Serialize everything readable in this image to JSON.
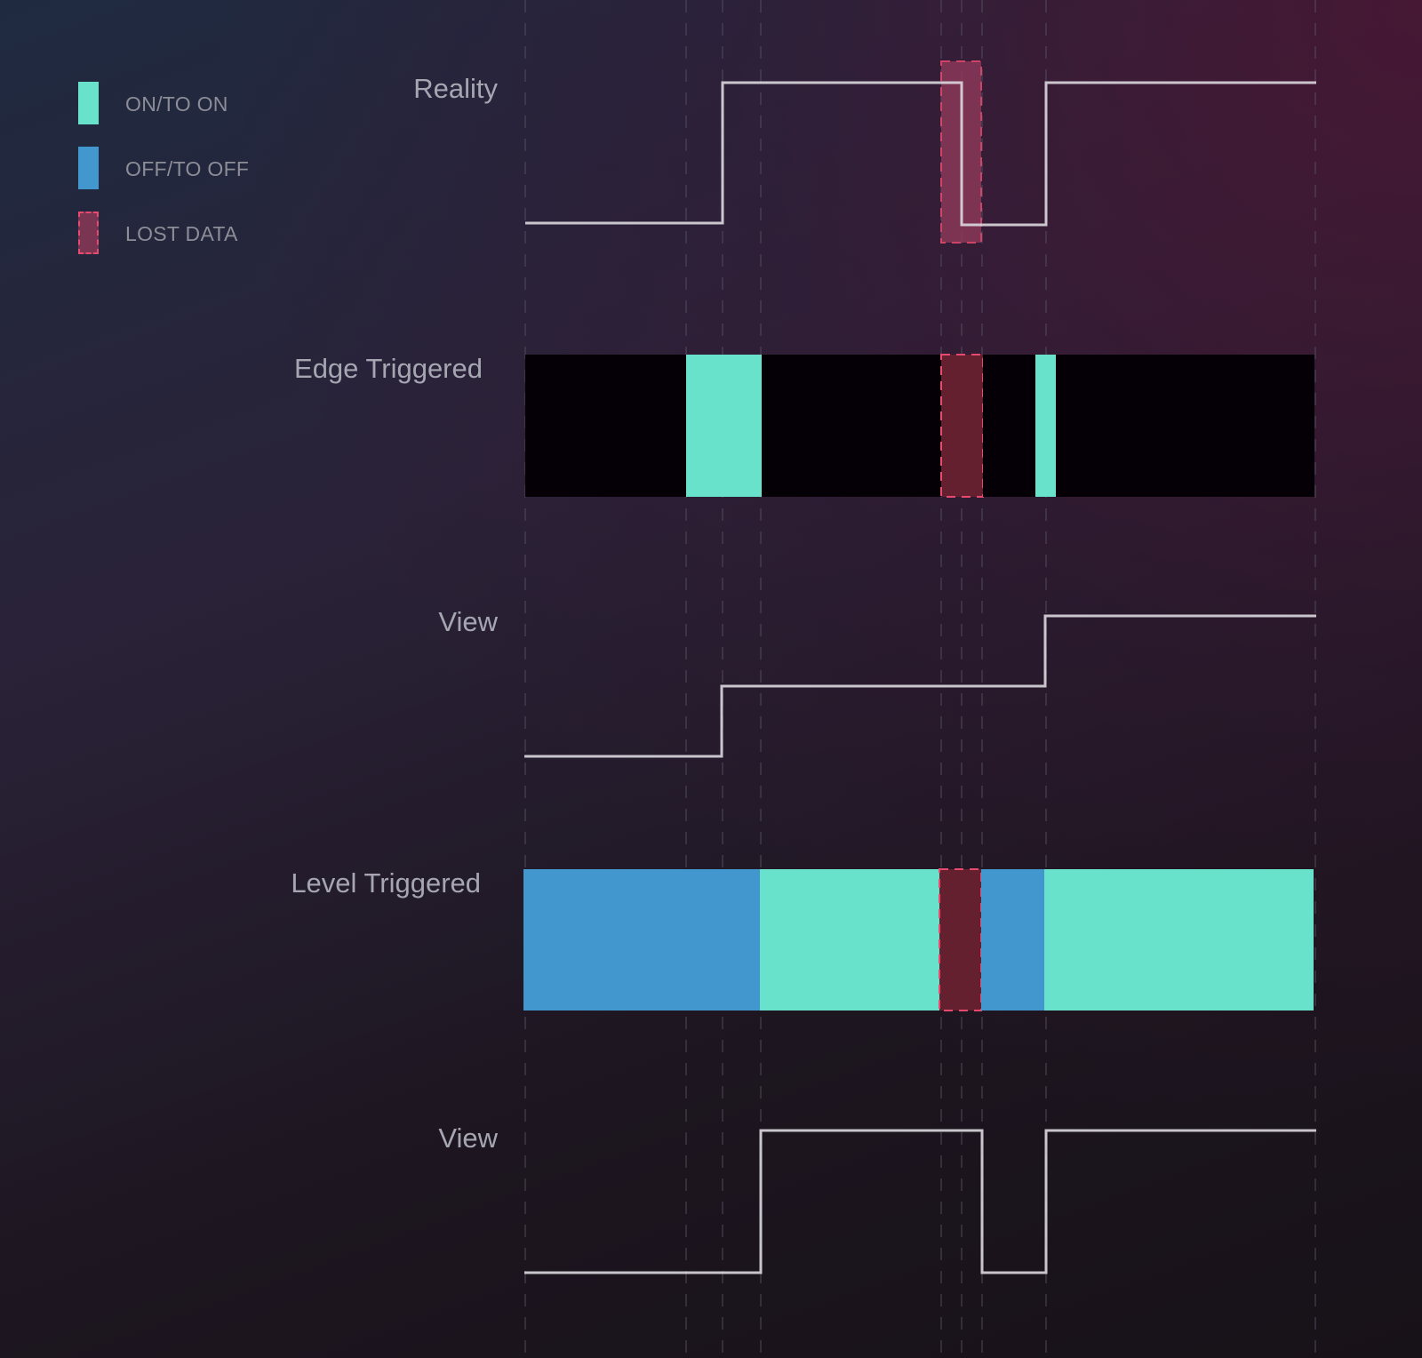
{
  "legend": [
    {
      "label": "ON/TO ON",
      "color": "#69e2cb",
      "style": "solid"
    },
    {
      "label": "OFF/TO OFF",
      "color": "#4298ce",
      "style": "solid"
    },
    {
      "label": "LOST DATA",
      "color": "#7a3552",
      "border": "#e8496e",
      "style": "dashed"
    }
  ],
  "rows": [
    {
      "label": "Reality",
      "type": "signal",
      "levels": [
        "low",
        "high",
        "low",
        "high"
      ],
      "lost_data": true
    },
    {
      "label": "Edge Triggered",
      "type": "bar",
      "segments": [
        "none",
        "on",
        "none",
        "lost",
        "none",
        "on",
        "none"
      ]
    },
    {
      "label": "View",
      "type": "signal",
      "levels": [
        "low",
        "mid",
        "high"
      ]
    },
    {
      "label": "Level Triggered",
      "type": "bar",
      "segments": [
        "off",
        "on",
        "lost",
        "off",
        "on"
      ]
    },
    {
      "label": "View",
      "type": "signal",
      "levels": [
        "low",
        "high",
        "low",
        "high"
      ]
    }
  ],
  "colors": {
    "on": "#69e2cb",
    "off": "#4298ce",
    "none": "#040006",
    "lost": "#64202f",
    "lost_border": "#e8496e",
    "signal": "#dcd8de",
    "gridline": "#5a5566"
  }
}
